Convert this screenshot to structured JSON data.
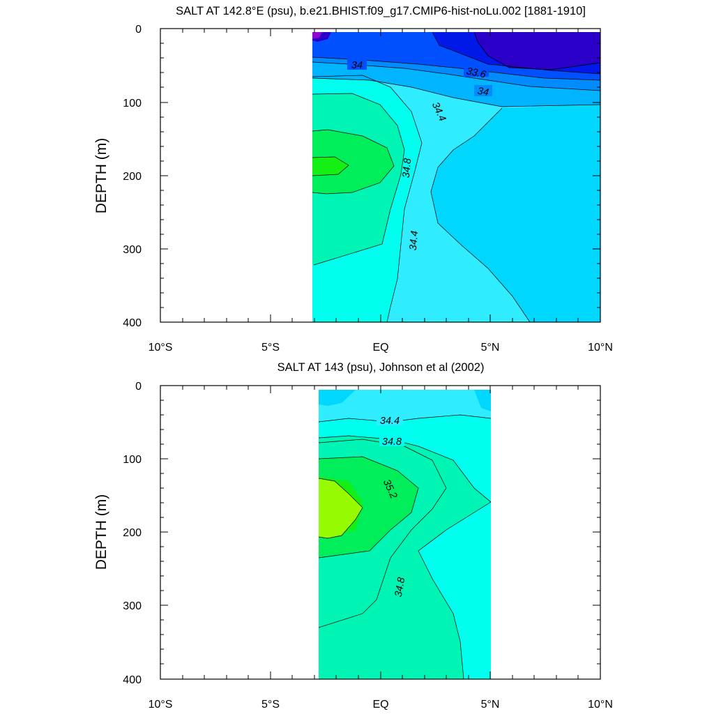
{
  "chart_data": [
    {
      "type": "contour",
      "title": "SALT AT 142.8°E (psu), b.e21.BHIST.f09_g17.CMIP6-hist-noLu.002 [1881-1910]",
      "ylabel": "DEPTH (m)",
      "xlabel": "",
      "xlim": [
        -10,
        10
      ],
      "ylim": [
        400,
        0
      ],
      "data_xlim": [
        -3,
        10
      ],
      "x_tick_labels": [
        "10°S",
        "5°S",
        "EQ",
        "5°N",
        "10°N"
      ],
      "x_ticks": [
        -10,
        -5,
        0,
        5,
        10
      ],
      "y_ticks": [
        0,
        100,
        200,
        300,
        400
      ],
      "contour_levels": [
        "33.6",
        "34",
        "34",
        "34.4",
        "34.8",
        "34.4"
      ],
      "salinity_range": [
        33.2,
        35.2
      ]
    },
    {
      "type": "contour",
      "title": "SALT AT 143 (psu), Johnson et al (2002)",
      "ylabel": "DEPTH (m)",
      "xlabel": "",
      "xlim": [
        -10,
        10
      ],
      "ylim": [
        400,
        0
      ],
      "data_xlim": [
        -2.75,
        5
      ],
      "x_tick_labels": [
        "10°S",
        "5°S",
        "EQ",
        "5°N",
        "10°N"
      ],
      "x_ticks": [
        -10,
        -5,
        0,
        5,
        10
      ],
      "y_ticks": [
        0,
        100,
        200,
        300,
        400
      ],
      "contour_levels": [
        "34.4",
        "34.8",
        "35.2",
        "34.8"
      ],
      "salinity_range": [
        34.2,
        35.4
      ]
    }
  ],
  "colors": {
    "s33_2": "#8a0acf",
    "s33_4": "#2a00c8",
    "s33_6": "#0018e8",
    "s33_8": "#0050ff",
    "s34_0": "#008cff",
    "s34_2": "#00b4ff",
    "s34_4": "#00d7ff",
    "s34_6": "#30ecff",
    "s34_8": "#00ffee",
    "s35_0": "#00f5b4",
    "s35_2": "#00ee5a",
    "s35_4": "#14f014",
    "s35_6": "#96fa00"
  }
}
